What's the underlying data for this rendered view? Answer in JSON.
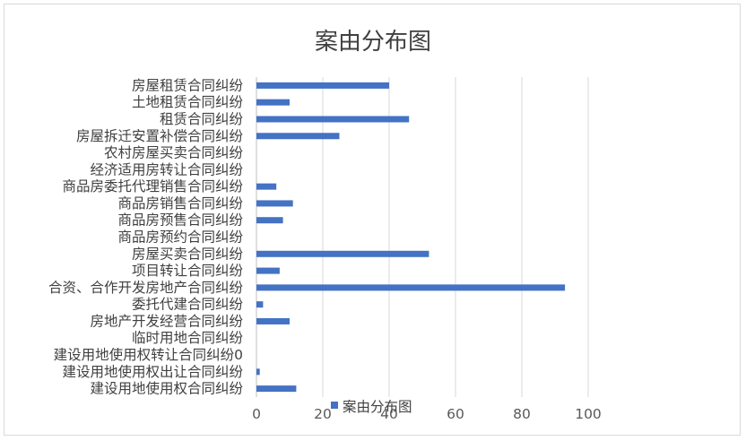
{
  "chart_data": {
    "type": "bar",
    "orientation": "horizontal",
    "title": "案由分布图",
    "categories": [
      "房屋租赁合同纠纷",
      "土地租赁合同纠纷",
      "租赁合同纠纷",
      "房屋拆迁安置补偿合同纠纷",
      "农村房屋买卖合同纠纷",
      "经济适用房转让合同纠纷",
      "商品房委托代理销售合同纠纷",
      "商品房销售合同纠纷",
      "商品房预售合同纠纷",
      "商品房预约合同纠纷",
      "房屋买卖合同纠纷",
      "项目转让合同纠纷",
      "合资、合作开发房地产合同纠纷",
      "委托代建合同纠纷",
      "房地产开发经营合同纠纷",
      "临时用地合同纠纷",
      "建设用地使用权转让合同纠纷0",
      "建设用地使用权出让合同纠纷",
      "建设用地使用权合同纠纷"
    ],
    "series": [
      {
        "name": "案由分布图",
        "values": [
          40,
          10,
          46,
          25,
          0,
          0,
          6,
          11,
          8,
          0,
          52,
          7,
          93,
          2,
          10,
          0,
          0,
          1,
          12
        ]
      }
    ],
    "xlim": [
      0,
      100
    ],
    "xticks": [
      "0",
      "20",
      "40",
      "60",
      "80",
      "100"
    ],
    "grid": true,
    "legend": "bottom",
    "colors": {
      "bar": "#4472C4",
      "grid": "#d9d9d9",
      "text": "#404040"
    }
  }
}
